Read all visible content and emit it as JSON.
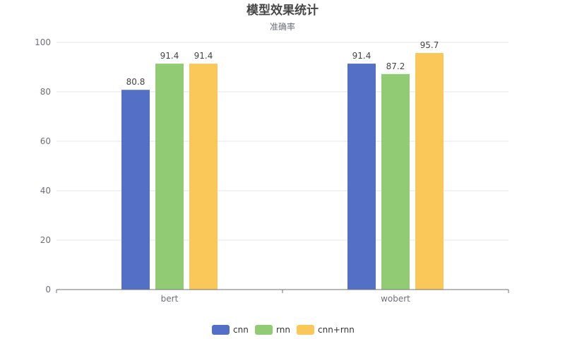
{
  "chart_data": {
    "type": "bar",
    "title": "模型效果统计",
    "subtitle": "准确率",
    "categories": [
      "bert",
      "wobert"
    ],
    "series": [
      {
        "name": "cnn",
        "values": [
          80.8,
          91.4
        ],
        "color": "#5470c6"
      },
      {
        "name": "rnn",
        "values": [
          91.4,
          87.2
        ],
        "color": "#91cc75"
      },
      {
        "name": "cnn+rnn",
        "values": [
          91.4,
          95.7
        ],
        "color": "#fac858"
      }
    ],
    "yticks": [
      0,
      20,
      40,
      60,
      80,
      100
    ],
    "ylim": [
      0,
      100
    ],
    "xlabel": "",
    "ylabel": "",
    "grid": true,
    "legend_position": "bottom-center"
  }
}
